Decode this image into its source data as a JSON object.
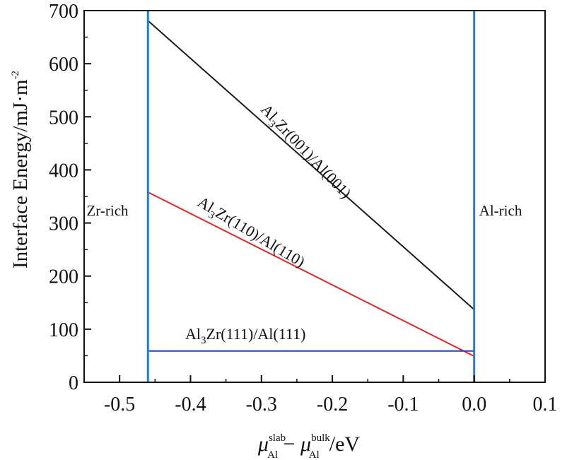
{
  "chart_data": {
    "type": "line",
    "xlabel": {
      "mu": "μ",
      "sub1": "Al",
      "sup1": "slab",
      "minus": " − ",
      "sub2": "Al",
      "sup2": "bulk",
      "unit": "/eV"
    },
    "ylabel": {
      "main": "Interface Energy/mJ·m",
      "sup": "-2"
    },
    "xlim": [
      -0.55,
      0.1
    ],
    "ylim": [
      0,
      700
    ],
    "x_ticks": [
      -0.5,
      -0.4,
      -0.3,
      -0.2,
      -0.1,
      0.0,
      0.1
    ],
    "x_tick_labels": [
      "-0.5",
      "-0.4",
      "-0.3",
      "-0.2",
      "-0.1",
      "0.0",
      "0.1"
    ],
    "y_ticks": [
      0,
      100,
      200,
      300,
      400,
      500,
      600,
      700
    ],
    "y_tick_labels": [
      "0",
      "100",
      "200",
      "300",
      "400",
      "500",
      "600",
      "700"
    ],
    "grid": false,
    "region_labels": {
      "left": "Zr-rich",
      "right": "Al-rich"
    },
    "boundaries": [
      {
        "x": -0.46,
        "color": "#1e7fd6"
      },
      {
        "x": 0.0,
        "color": "#1e7fd6"
      }
    ],
    "series": [
      {
        "label": {
          "pre": "Al",
          "sub": "3",
          "post": "Zr(001)/Al(001)"
        },
        "color": "#1a1a1a",
        "x": [
          -0.46,
          0.0
        ],
        "y": [
          681,
          137
        ]
      },
      {
        "label": {
          "pre": "Al",
          "sub": "3",
          "post": "Zr(110)/Al(110)"
        },
        "color": "#e02828",
        "x": [
          -0.46,
          0.0
        ],
        "y": [
          358,
          49
        ]
      },
      {
        "label": {
          "pre": "Al",
          "sub": "3",
          "post": "Zr(111)/Al(111)"
        },
        "color": "#1f3fbf",
        "x": [
          -0.46,
          0.0
        ],
        "y": [
          59,
          59
        ]
      }
    ]
  }
}
